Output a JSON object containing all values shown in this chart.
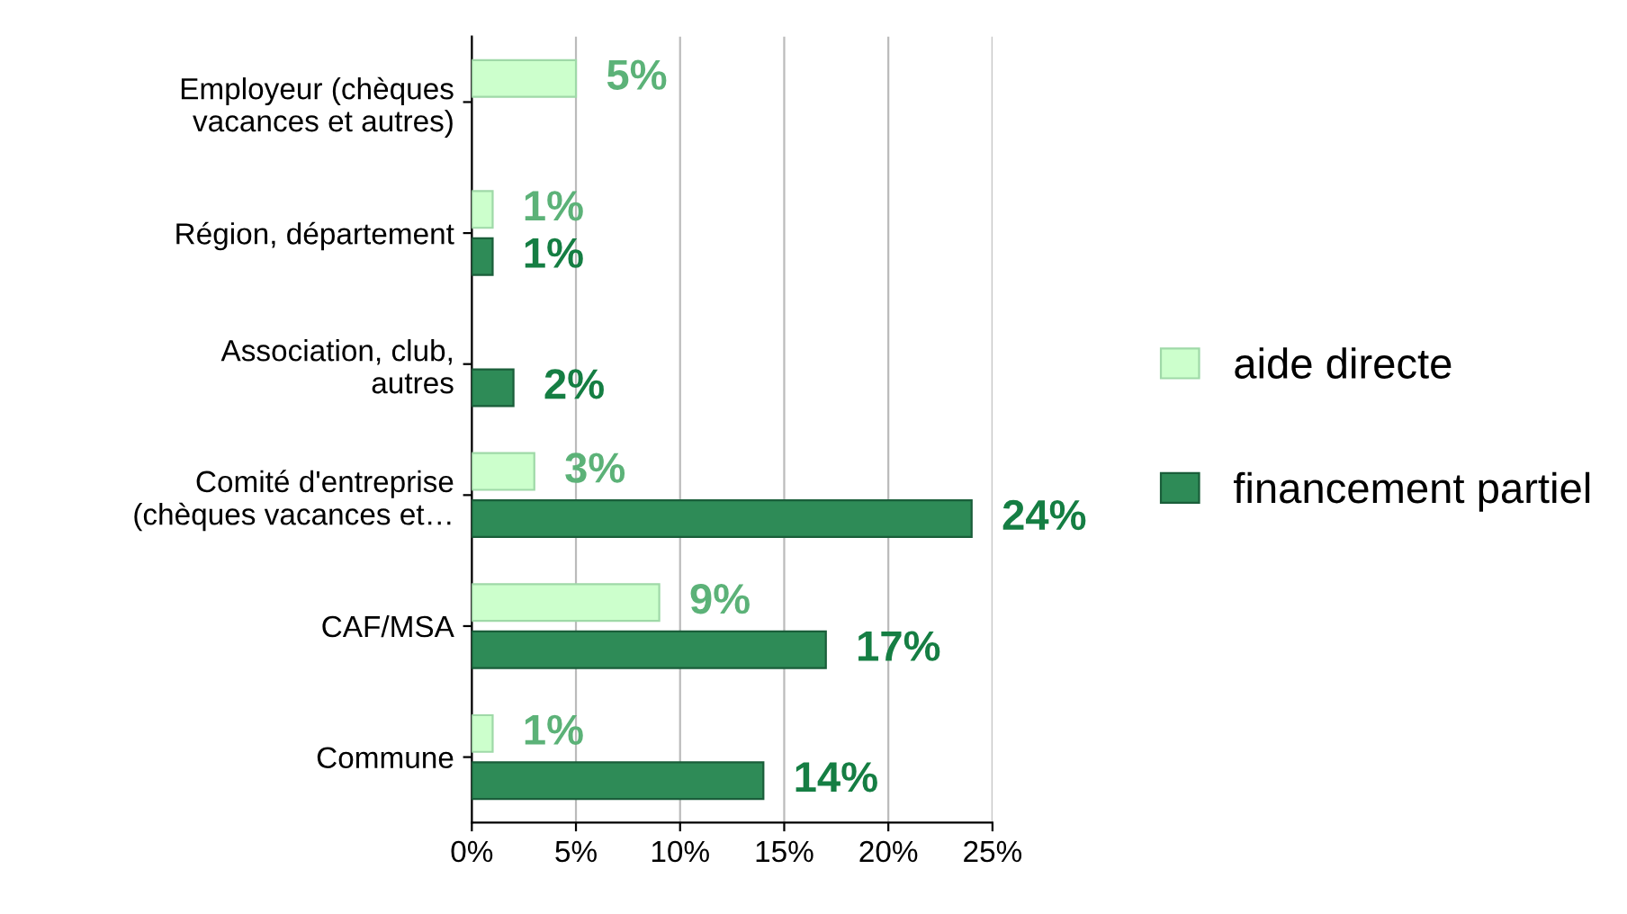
{
  "chart_data": {
    "type": "bar",
    "orientation": "horizontal",
    "categories": [
      "Employeur (chèques\nvacances et autres)",
      "Région, département",
      "Association, club,\nautres",
      "Comité d'entreprise\n(chèques vacances et…",
      "CAF/MSA",
      "Commune"
    ],
    "series": [
      {
        "name": "aide directe",
        "color": "#ccffcc",
        "values": [
          5,
          1,
          null,
          3,
          9,
          1
        ],
        "value_labels": [
          "5%",
          "1%",
          null,
          "3%",
          "9%",
          "1%"
        ]
      },
      {
        "name": "financement partiel",
        "color": "#2e8b57",
        "values": [
          null,
          1,
          2,
          24,
          17,
          14
        ],
        "value_labels": [
          null,
          "1%",
          "2%",
          "24%",
          "17%",
          "14%"
        ]
      }
    ],
    "xlim": [
      0,
      25
    ],
    "xticks": [
      {
        "value": 0,
        "label": "0%"
      },
      {
        "value": 5,
        "label": "5%"
      },
      {
        "value": 10,
        "label": "10%"
      },
      {
        "value": 15,
        "label": "15%"
      },
      {
        "value": 20,
        "label": "20%"
      },
      {
        "value": 25,
        "label": "25%"
      }
    ],
    "grid": "x",
    "legend": "right"
  }
}
